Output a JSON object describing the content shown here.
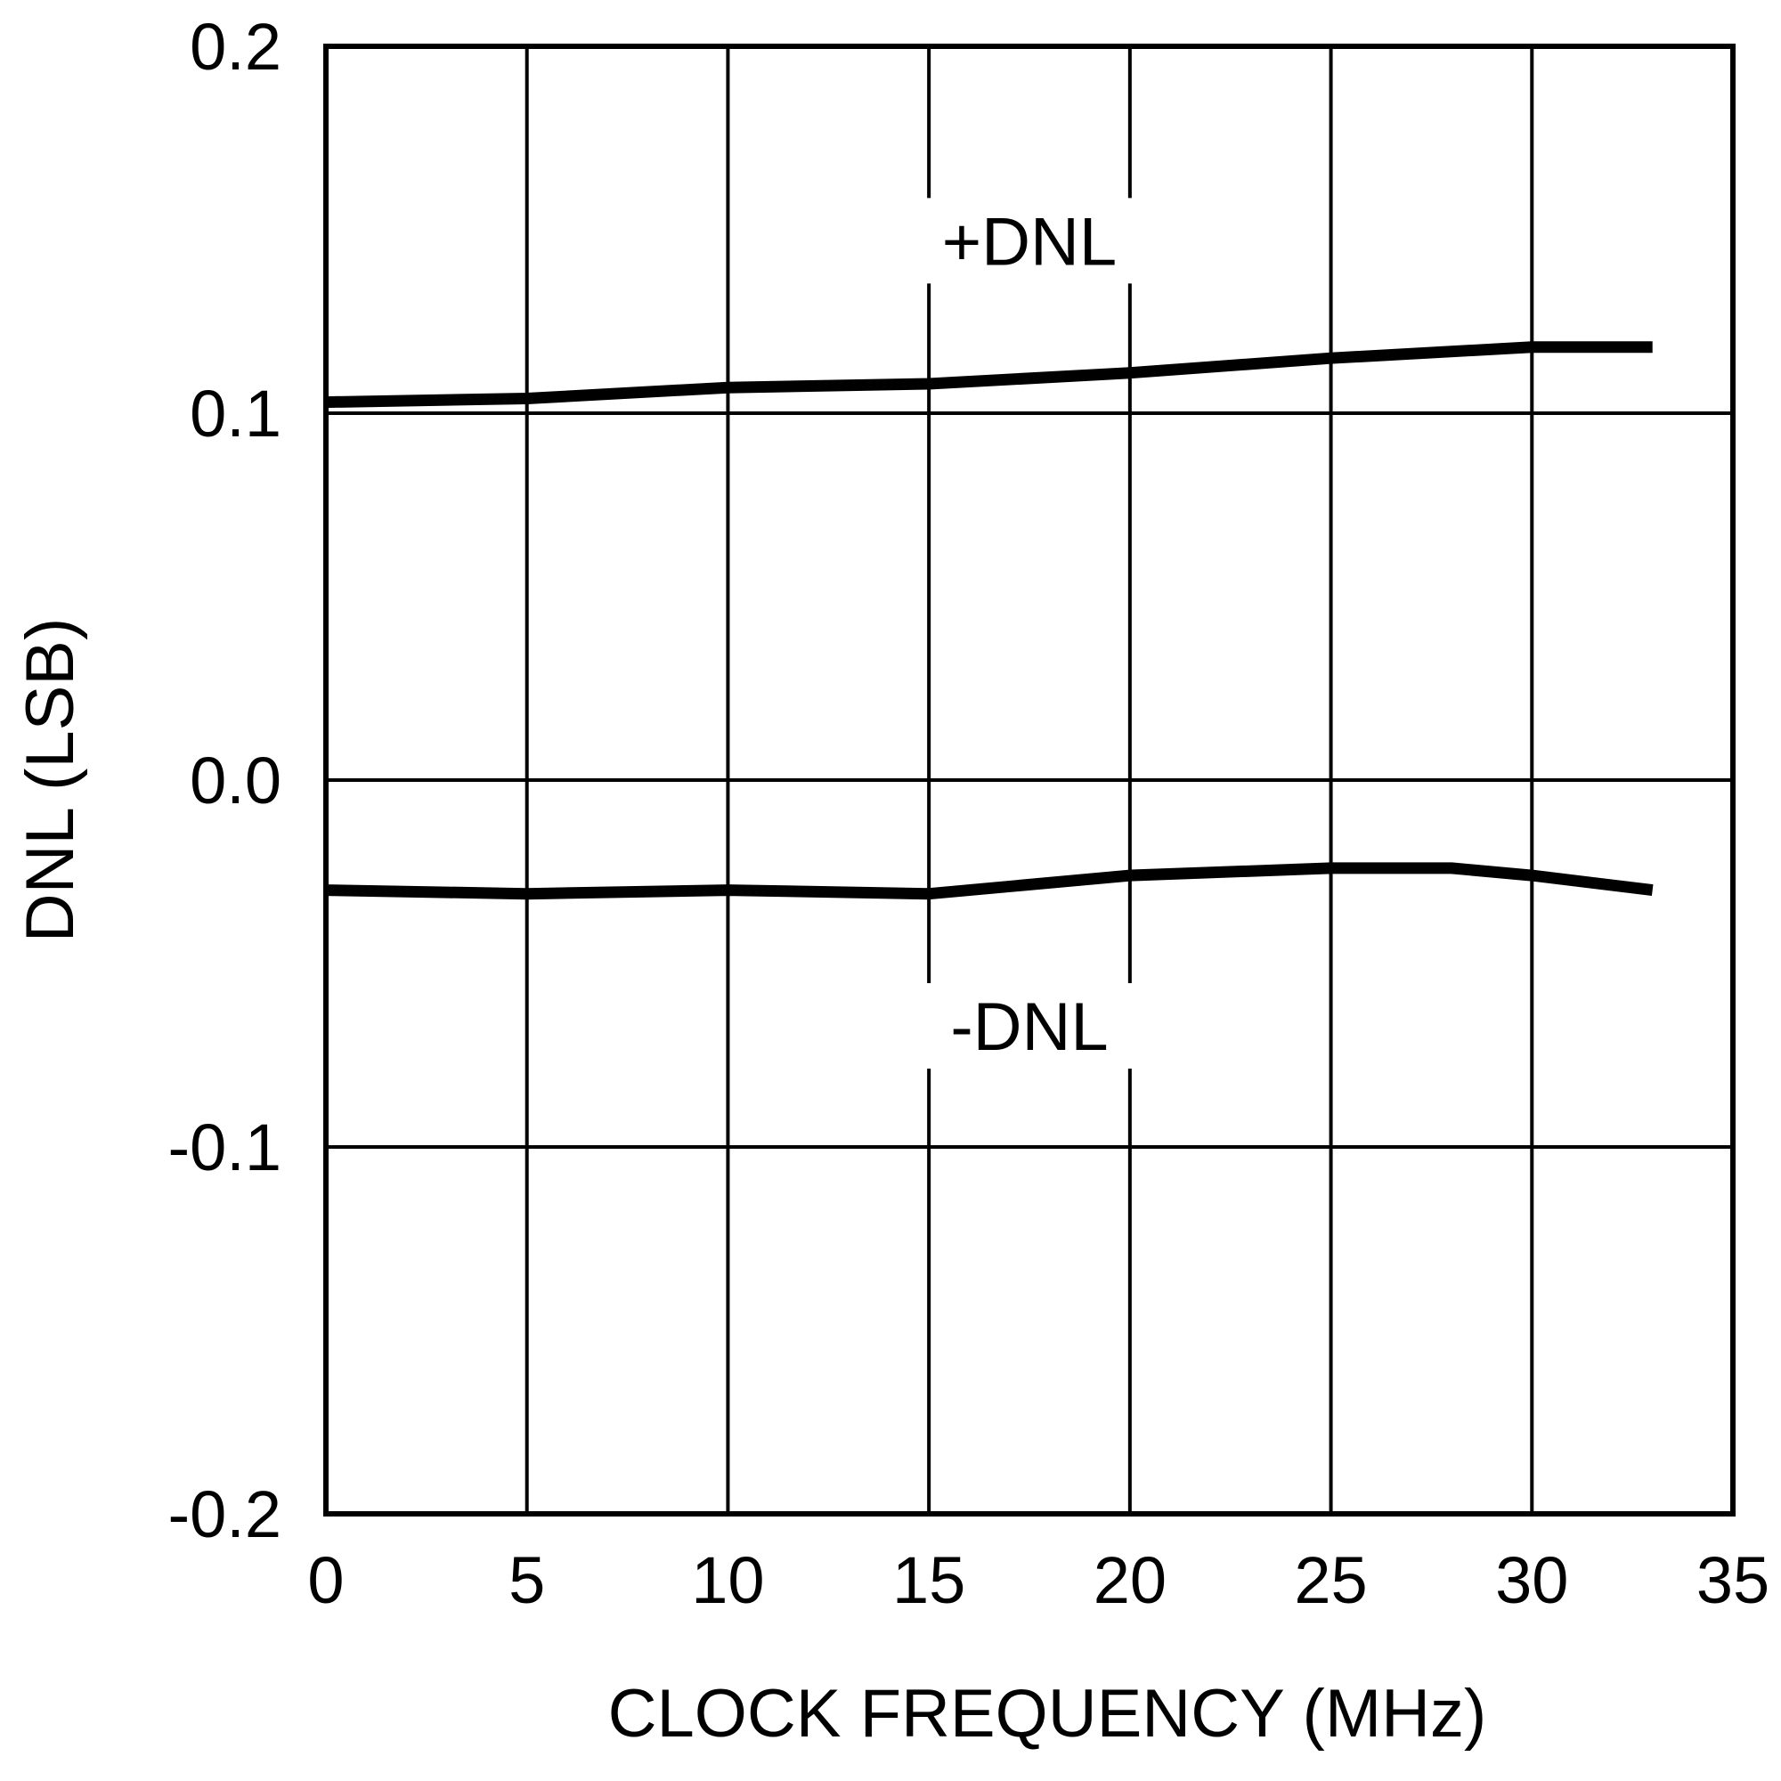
{
  "chart_data": {
    "type": "line",
    "xlabel": "CLOCK FREQUENCY (MHz)",
    "ylabel": "DNL (LSB)",
    "xlim": [
      0,
      35
    ],
    "ylim": [
      -0.2,
      0.2
    ],
    "x_ticks": [
      0,
      5,
      10,
      15,
      20,
      25,
      30,
      35
    ],
    "x_tick_labels": [
      "0",
      "5",
      "10",
      "15",
      "20",
      "25",
      "30",
      "35"
    ],
    "y_ticks": [
      0.2,
      0.1,
      0.0,
      -0.1,
      -0.2
    ],
    "y_tick_labels": [
      "0.2",
      "0.1",
      "0.0",
      "-0.1",
      "-0.2"
    ],
    "grid": true,
    "series": [
      {
        "name": "+DNL",
        "x": [
          0,
          5,
          10,
          15,
          20,
          25,
          30,
          33
        ],
        "y": [
          0.103,
          0.104,
          0.107,
          0.108,
          0.111,
          0.115,
          0.118,
          0.118
        ]
      },
      {
        "name": "-DNL",
        "x": [
          0,
          5,
          10,
          15,
          20,
          25,
          28,
          30,
          33
        ],
        "y": [
          -0.03,
          -0.031,
          -0.03,
          -0.031,
          -0.026,
          -0.024,
          -0.024,
          -0.026,
          -0.03
        ]
      }
    ]
  }
}
